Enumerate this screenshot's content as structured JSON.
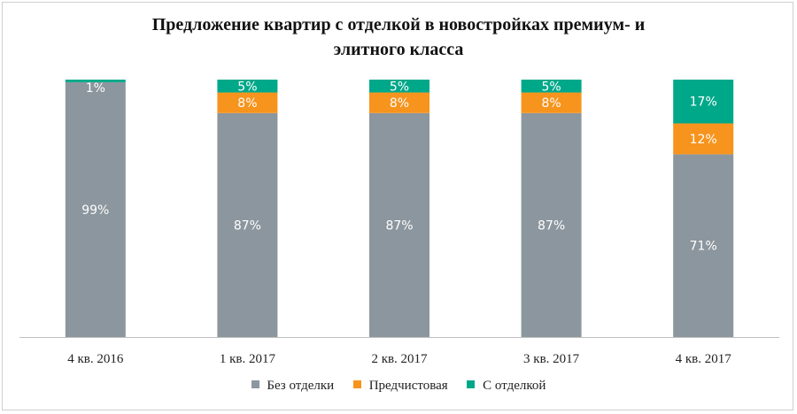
{
  "chart_data": {
    "type": "bar",
    "stacked": true,
    "title_lines": [
      "Предложение квартир с отделкой в новостройках премиум- и",
      "элитного класса"
    ],
    "categories": [
      "4 кв. 2016",
      "1 кв. 2017",
      "2 кв. 2017",
      "3 кв. 2017",
      "4 кв. 2017"
    ],
    "series": [
      {
        "name": "Без отделки",
        "values": [
          99,
          87,
          87,
          87,
          71
        ],
        "color": "#8C969E",
        "labels": [
          "99%",
          "87%",
          "87%",
          "87%",
          "71%"
        ]
      },
      {
        "name": "Предчистовая",
        "values": [
          0,
          8,
          8,
          8,
          12
        ],
        "color": "#F7941D",
        "labels": [
          "",
          "8%",
          "8%",
          "8%",
          "12%"
        ]
      },
      {
        "name": "С отделкой",
        "values": [
          1,
          5,
          5,
          5,
          17
        ],
        "color": "#00A88A",
        "labels": [
          "1%",
          "5%",
          "5%",
          "5%",
          "17%"
        ]
      }
    ],
    "ylim": [
      0,
      100
    ],
    "grid": false,
    "legend_position": "bottom"
  }
}
